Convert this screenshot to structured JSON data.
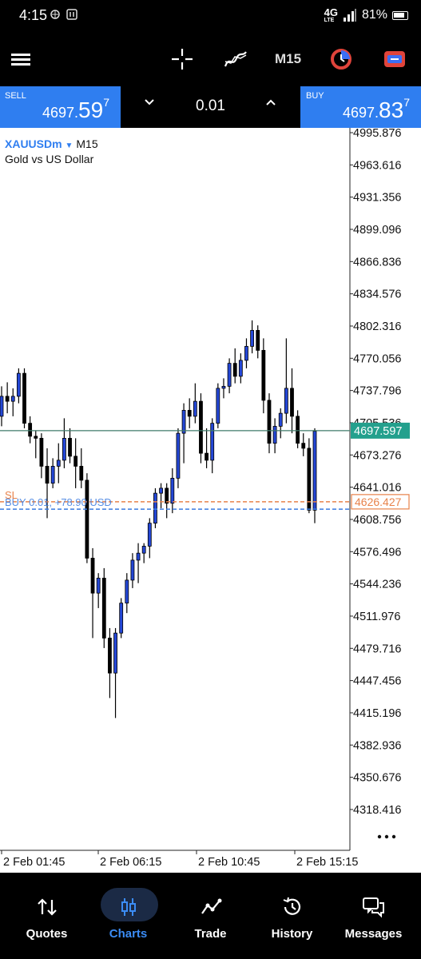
{
  "status_bar": {
    "time": "4:15",
    "network": "4G",
    "network_sub": "LTE",
    "battery": "81%"
  },
  "toolbar": {
    "timeframe": "M15",
    "icons": [
      "menu-icon",
      "crosshair-icon",
      "indicators-icon",
      "timeframe",
      "trade-icon",
      "chart-type-icon"
    ]
  },
  "trade_panel": {
    "sell_label": "SELL",
    "sell_price_main": "4697.",
    "sell_price_big": "59",
    "sell_price_sup": "7",
    "buy_label": "BUY",
    "buy_price_main": "4697.",
    "buy_price_big": "83",
    "buy_price_sup": "7",
    "lot_size": "0.01"
  },
  "chart_info": {
    "symbol": "XAUUSDm",
    "timeframe": "M15",
    "description": "Gold vs US Dollar"
  },
  "chart_data": {
    "type": "candlestick",
    "price_axis_ticks": [
      "4995.876",
      "4963.616",
      "4931.356",
      "4899.096",
      "4866.836",
      "4834.576",
      "4802.316",
      "4770.056",
      "4737.796",
      "4705.536",
      "4673.276",
      "4641.016",
      "4608.756",
      "4576.496",
      "4544.236",
      "4511.976",
      "4479.716",
      "4447.456",
      "4415.196",
      "4382.936",
      "4350.676",
      "4318.416"
    ],
    "ylim": [
      4295,
      5010
    ],
    "time_axis_labels": [
      "2 Feb 01:45",
      "2 Feb 06:15",
      "2 Feb 10:45",
      "2 Feb 15:15"
    ],
    "current_price_label": "4697.597",
    "sl_price_label": "4626.427",
    "sl_level": 4626.427,
    "position_level": 4619.0,
    "sl_tag": "SL",
    "position_tag": "BUY 0.01, +78.90 USD",
    "up_color": "#2447d6",
    "down_color": "#000000",
    "candles": [
      {
        "o": 4712,
        "h": 4742,
        "l": 4702,
        "c": 4732
      },
      {
        "o": 4732,
        "h": 4746,
        "l": 4715,
        "c": 4727
      },
      {
        "o": 4727,
        "h": 4740,
        "l": 4712,
        "c": 4732
      },
      {
        "o": 4732,
        "h": 4760,
        "l": 4725,
        "c": 4755
      },
      {
        "o": 4755,
        "h": 4760,
        "l": 4700,
        "c": 4705
      },
      {
        "o": 4705,
        "h": 4712,
        "l": 4685,
        "c": 4692
      },
      {
        "o": 4692,
        "h": 4698,
        "l": 4670,
        "c": 4690
      },
      {
        "o": 4690,
        "h": 4695,
        "l": 4650,
        "c": 4662
      },
      {
        "o": 4662,
        "h": 4680,
        "l": 4610,
        "c": 4645
      },
      {
        "o": 4645,
        "h": 4670,
        "l": 4640,
        "c": 4662
      },
      {
        "o": 4662,
        "h": 4685,
        "l": 4645,
        "c": 4668
      },
      {
        "o": 4668,
        "h": 4710,
        "l": 4660,
        "c": 4690
      },
      {
        "o": 4690,
        "h": 4700,
        "l": 4665,
        "c": 4672
      },
      {
        "o": 4672,
        "h": 4690,
        "l": 4640,
        "c": 4662
      },
      {
        "o": 4662,
        "h": 4680,
        "l": 4640,
        "c": 4648
      },
      {
        "o": 4648,
        "h": 4655,
        "l": 4565,
        "c": 4570
      },
      {
        "o": 4570,
        "h": 4580,
        "l": 4490,
        "c": 4535
      },
      {
        "o": 4535,
        "h": 4555,
        "l": 4520,
        "c": 4550
      },
      {
        "o": 4550,
        "h": 4560,
        "l": 4480,
        "c": 4490
      },
      {
        "o": 4490,
        "h": 4500,
        "l": 4430,
        "c": 4455
      },
      {
        "o": 4455,
        "h": 4500,
        "l": 4410,
        "c": 4495
      },
      {
        "o": 4495,
        "h": 4530,
        "l": 4490,
        "c": 4525
      },
      {
        "o": 4525,
        "h": 4555,
        "l": 4515,
        "c": 4548
      },
      {
        "o": 4548,
        "h": 4575,
        "l": 4540,
        "c": 4568
      },
      {
        "o": 4568,
        "h": 4585,
        "l": 4545,
        "c": 4575
      },
      {
        "o": 4575,
        "h": 4585,
        "l": 4565,
        "c": 4582
      },
      {
        "o": 4582,
        "h": 4610,
        "l": 4570,
        "c": 4605
      },
      {
        "o": 4605,
        "h": 4640,
        "l": 4600,
        "c": 4635
      },
      {
        "o": 4635,
        "h": 4645,
        "l": 4620,
        "c": 4640
      },
      {
        "o": 4640,
        "h": 4645,
        "l": 4610,
        "c": 4625
      },
      {
        "o": 4625,
        "h": 4660,
        "l": 4615,
        "c": 4650
      },
      {
        "o": 4650,
        "h": 4700,
        "l": 4640,
        "c": 4695
      },
      {
        "o": 4695,
        "h": 4725,
        "l": 4665,
        "c": 4718
      },
      {
        "o": 4718,
        "h": 4730,
        "l": 4700,
        "c": 4712
      },
      {
        "o": 4712,
        "h": 4745,
        "l": 4705,
        "c": 4727
      },
      {
        "o": 4727,
        "h": 4735,
        "l": 4665,
        "c": 4675
      },
      {
        "o": 4675,
        "h": 4700,
        "l": 4660,
        "c": 4668
      },
      {
        "o": 4668,
        "h": 4710,
        "l": 4655,
        "c": 4705
      },
      {
        "o": 4705,
        "h": 4745,
        "l": 4700,
        "c": 4740
      },
      {
        "o": 4740,
        "h": 4750,
        "l": 4730,
        "c": 4742
      },
      {
        "o": 4742,
        "h": 4770,
        "l": 4735,
        "c": 4765
      },
      {
        "o": 4765,
        "h": 4780,
        "l": 4745,
        "c": 4752
      },
      {
        "o": 4752,
        "h": 4775,
        "l": 4745,
        "c": 4768
      },
      {
        "o": 4768,
        "h": 4790,
        "l": 4760,
        "c": 4782
      },
      {
        "o": 4782,
        "h": 4808,
        "l": 4775,
        "c": 4798
      },
      {
        "o": 4798,
        "h": 4803,
        "l": 4770,
        "c": 4778
      },
      {
        "o": 4778,
        "h": 4790,
        "l": 4715,
        "c": 4728
      },
      {
        "o": 4728,
        "h": 4735,
        "l": 4675,
        "c": 4685
      },
      {
        "o": 4685,
        "h": 4710,
        "l": 4675,
        "c": 4702
      },
      {
        "o": 4702,
        "h": 4720,
        "l": 4690,
        "c": 4715
      },
      {
        "o": 4715,
        "h": 4790,
        "l": 4705,
        "c": 4740
      },
      {
        "o": 4740,
        "h": 4760,
        "l": 4695,
        "c": 4712
      },
      {
        "o": 4712,
        "h": 4718,
        "l": 4680,
        "c": 4685
      },
      {
        "o": 4685,
        "h": 4695,
        "l": 4672,
        "c": 4680
      },
      {
        "o": 4680,
        "h": 4690,
        "l": 4615,
        "c": 4618
      },
      {
        "o": 4618,
        "h": 4700,
        "l": 4605,
        "c": 4697
      }
    ]
  },
  "nav": {
    "items": [
      {
        "label": "Quotes"
      },
      {
        "label": "Charts"
      },
      {
        "label": "Trade"
      },
      {
        "label": "History"
      },
      {
        "label": "Messages"
      }
    ]
  }
}
